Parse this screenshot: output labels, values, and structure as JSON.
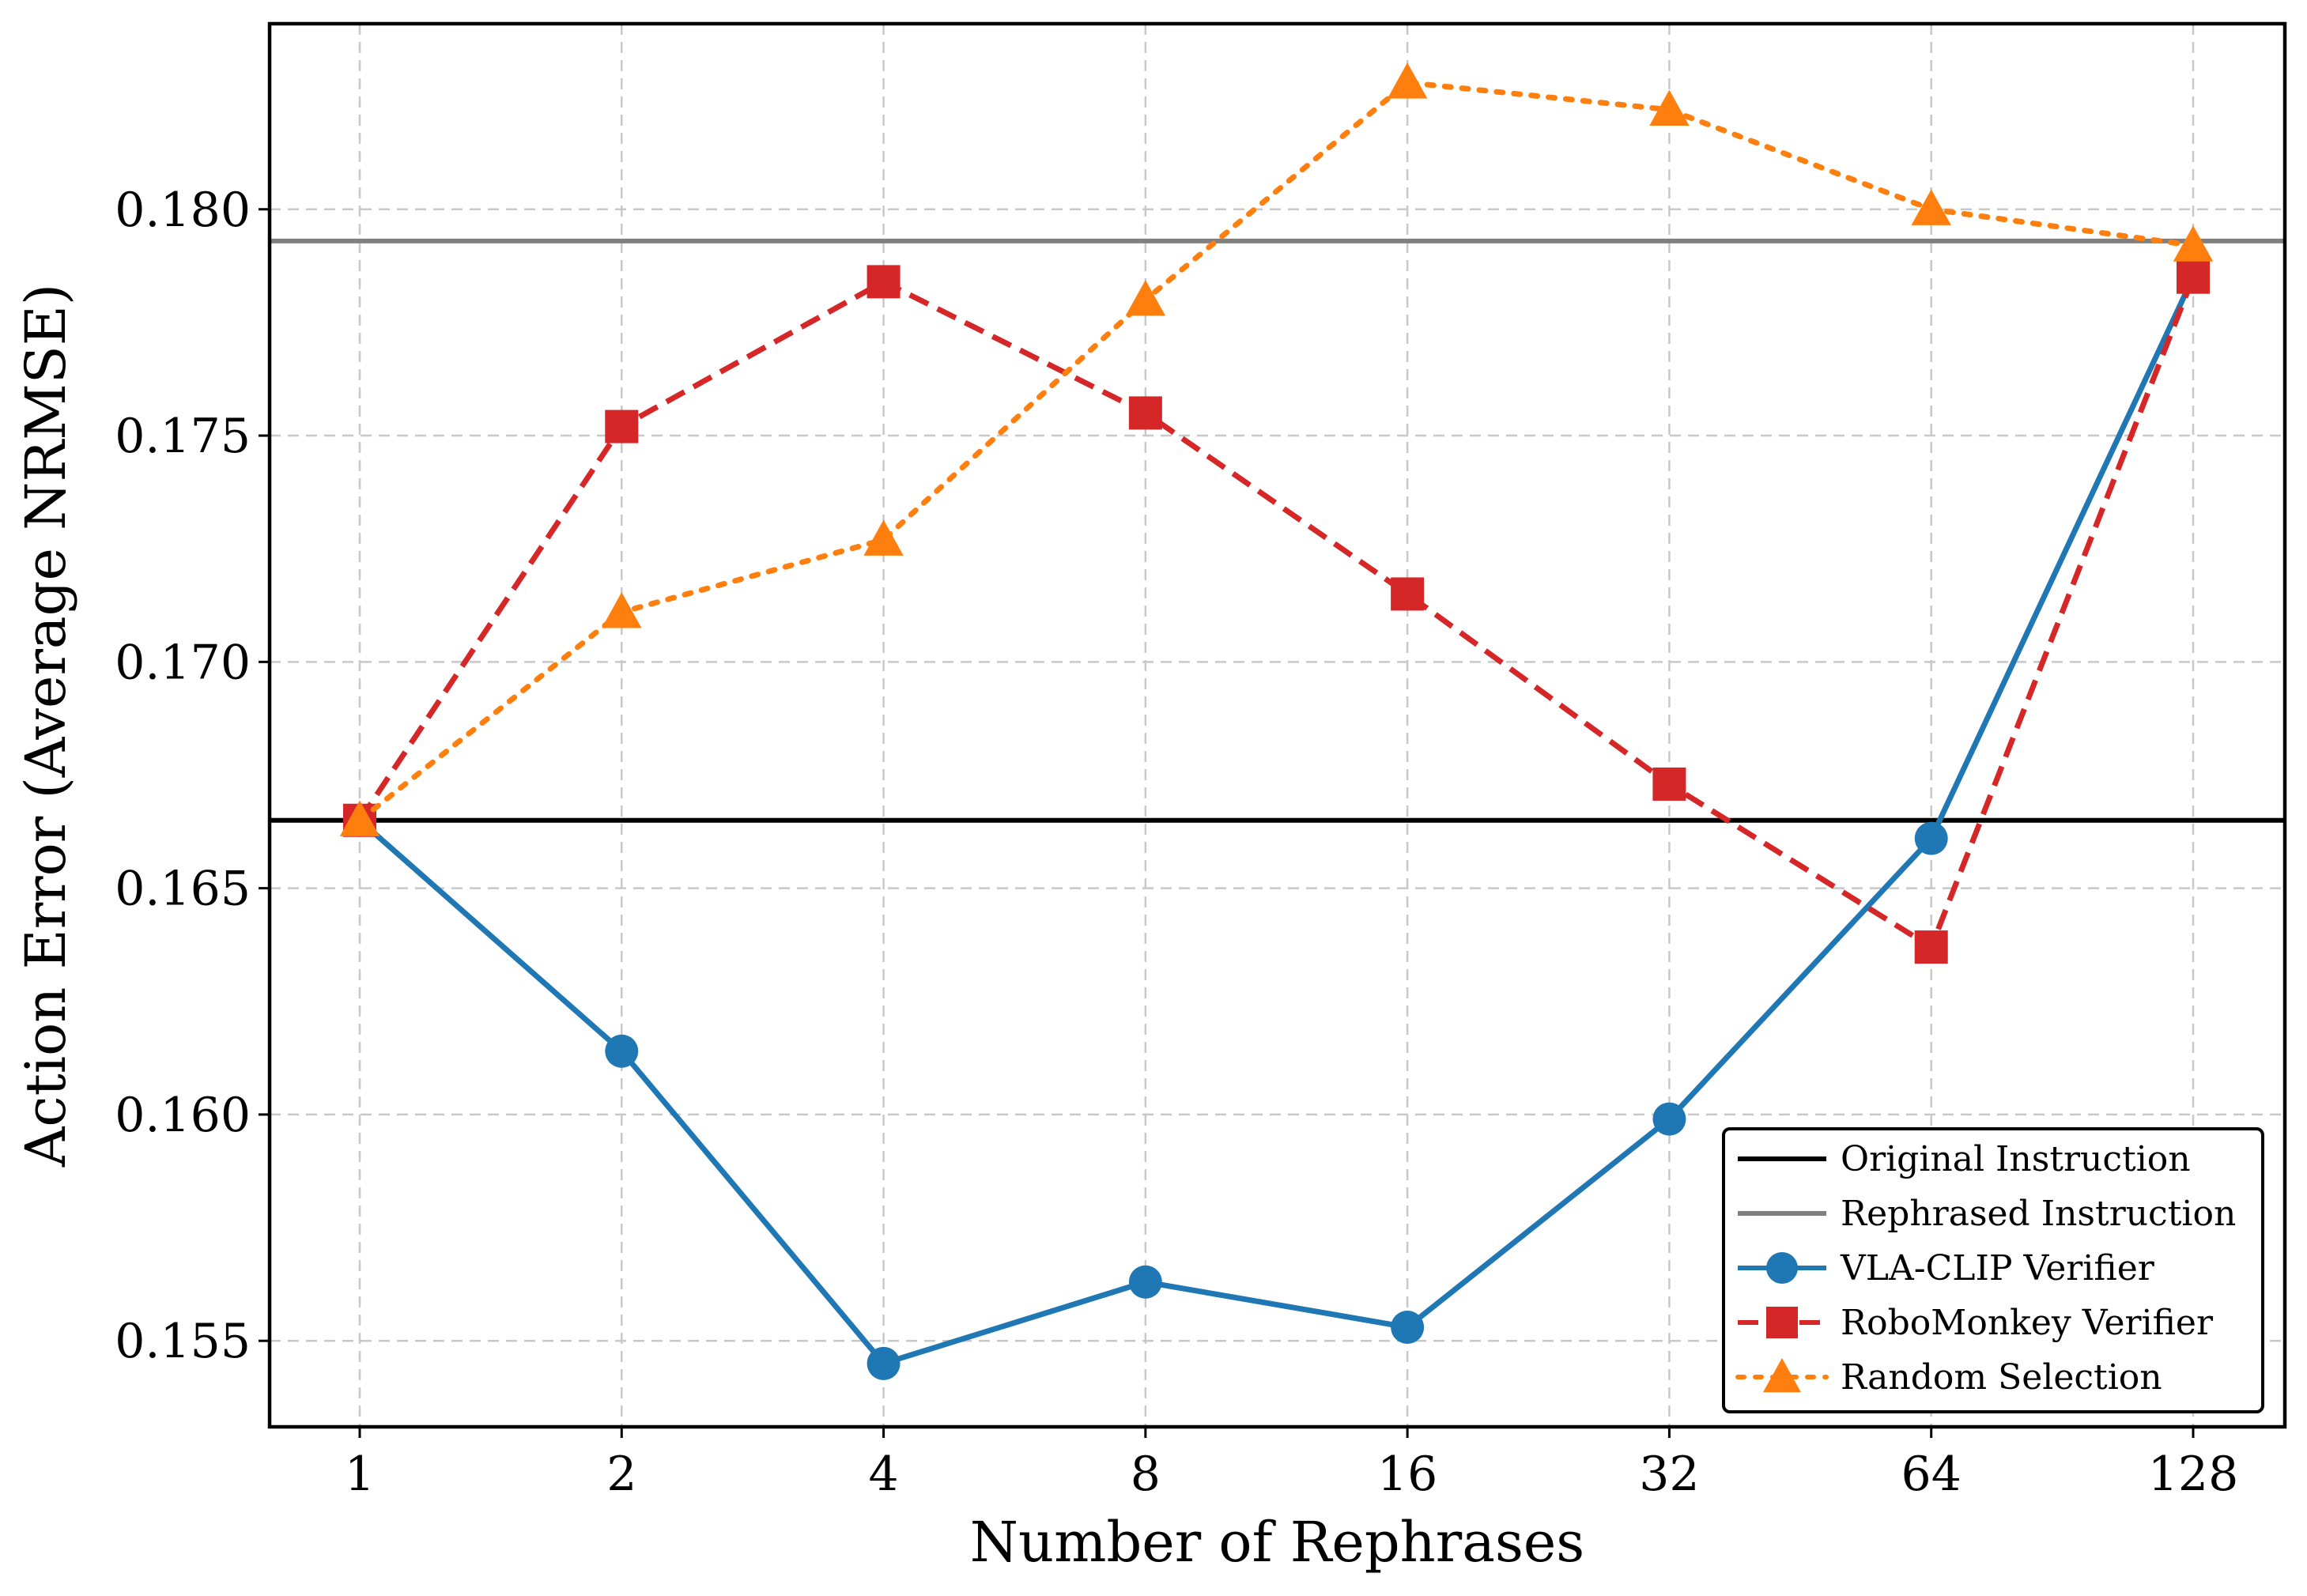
{
  "chart_data": {
    "type": "line",
    "title": "",
    "xlabel": "Number of Rephrases",
    "ylabel": "Action Error (Average NRMSE)",
    "x_scale": "log2",
    "categories": [
      "1",
      "2",
      "4",
      "8",
      "16",
      "32",
      "64",
      "128"
    ],
    "x": [
      1,
      2,
      4,
      8,
      16,
      32,
      64,
      128
    ],
    "ylim": [
      0.1531,
      0.1841
    ],
    "yticks": [
      0.155,
      0.16,
      0.165,
      0.17,
      0.175,
      0.18
    ],
    "ytick_labels": [
      "0.155",
      "0.160",
      "0.165",
      "0.170",
      "0.175",
      "0.180"
    ],
    "grid": true,
    "legend_position": "lower-right",
    "hlines": [
      {
        "name": "Original Instruction",
        "value": 0.1665,
        "color": "#000000"
      },
      {
        "name": "Rephrased Instruction",
        "value": 0.1793,
        "color": "#808080"
      }
    ],
    "series": [
      {
        "name": "VLA-CLIP Verifier",
        "color": "#1f77b4",
        "marker": "circle",
        "linestyle": "solid",
        "values": [
          0.1665,
          0.1614,
          0.1545,
          0.1563,
          0.1553,
          0.1599,
          0.1661,
          0.1785
        ]
      },
      {
        "name": "RoboMonkey Verifier",
        "color": "#d62728",
        "marker": "square",
        "linestyle": "dashed",
        "values": [
          0.1665,
          0.1752,
          0.1784,
          0.1755,
          0.1715,
          0.1673,
          0.1637,
          0.1785
        ]
      },
      {
        "name": "Random Selection",
        "color": "#ff7f0e",
        "marker": "triangle",
        "linestyle": "dotted",
        "values": [
          0.1665,
          0.1711,
          0.1727,
          0.178,
          0.1828,
          0.1822,
          0.18,
          0.1792
        ]
      }
    ]
  }
}
